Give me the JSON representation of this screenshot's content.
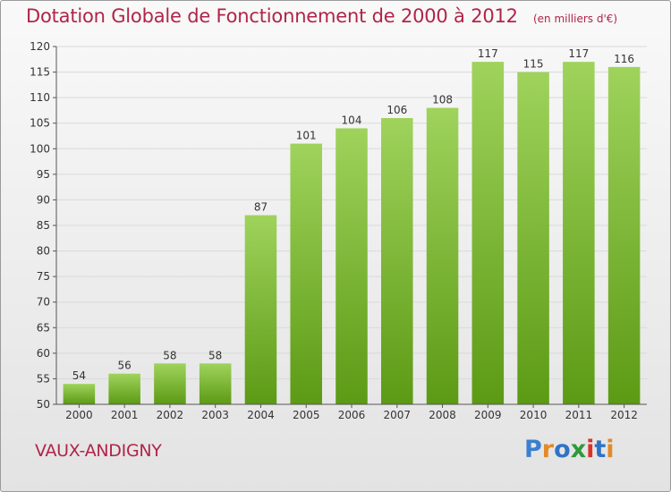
{
  "header": {
    "title": "Dotation Globale de Fonctionnement de 2000 à 2012",
    "subtitle": "(en milliers d'€)"
  },
  "footer": {
    "commune": "VAUX-ANDIGNY",
    "brand": "Proxiti",
    "brand_colors": [
      "#3a7fd0",
      "#e2892a",
      "#2f73c6",
      "#2e9a3a",
      "#d8332a",
      "#2f73c6",
      "#e2892a"
    ]
  },
  "colors": {
    "bar_top": "#9fd35c",
    "bar_bottom": "#5c9a14",
    "axis": "#555555",
    "grid": "#d9d9d9",
    "text": "#333333",
    "accent": "#b0244a"
  },
  "chart_data": {
    "type": "bar",
    "categories": [
      "2000",
      "2001",
      "2002",
      "2003",
      "2004",
      "2005",
      "2006",
      "2007",
      "2008",
      "2009",
      "2010",
      "2011",
      "2012"
    ],
    "values": [
      54,
      56,
      58,
      58,
      87,
      101,
      104,
      106,
      108,
      117,
      115,
      117,
      116
    ],
    "data_labels": [
      "54",
      "56",
      "58",
      "58",
      "87",
      "101",
      "104",
      "106",
      "108",
      "117",
      "115",
      "117",
      "116"
    ],
    "title": "Dotation Globale de Fonctionnement de 2000 à 2012",
    "subtitle": "(en milliers d'€)",
    "xlabel": "",
    "ylabel": "",
    "ylim": [
      50,
      120
    ],
    "yticks": [
      50,
      55,
      60,
      65,
      70,
      75,
      80,
      85,
      90,
      95,
      100,
      105,
      110,
      115,
      120
    ],
    "grid": true,
    "legend": "none"
  }
}
